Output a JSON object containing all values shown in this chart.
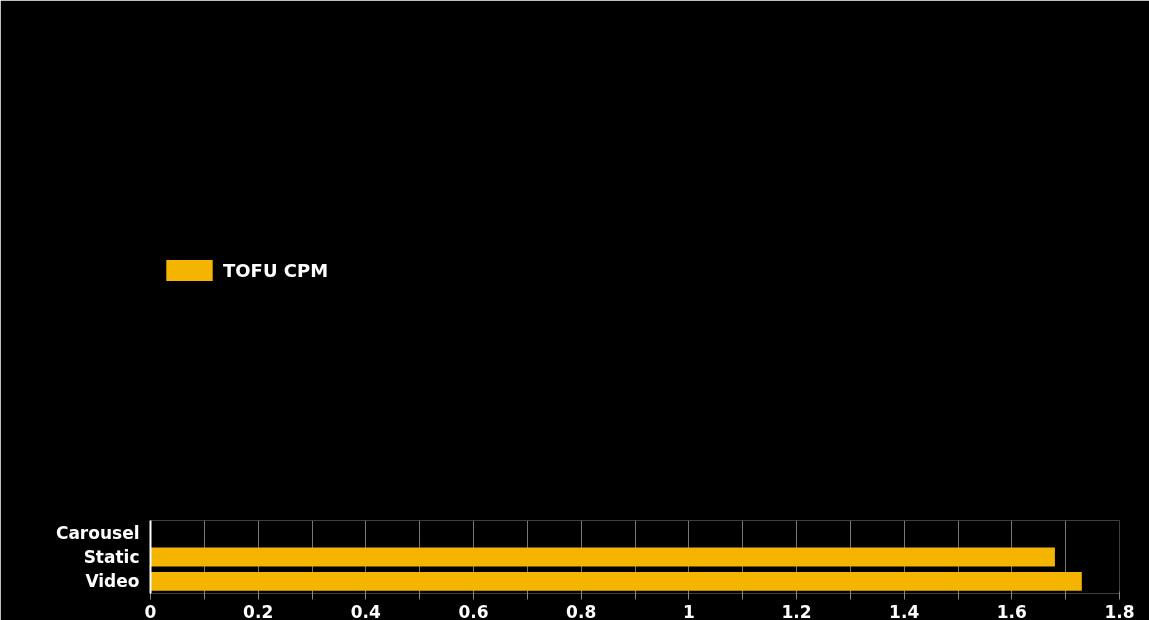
{
  "chart_data": {
    "type": "bar",
    "orientation": "horizontal",
    "categories": [
      "Carousel",
      "Static",
      "Video"
    ],
    "series": [
      {
        "name": "TOFU CPM",
        "color": "#f4b400",
        "values": [
          null,
          1.68,
          1.73
        ]
      }
    ],
    "xlim": [
      0,
      1.8
    ],
    "xticks": [
      0,
      {
        "value": 0.1,
        "label": null
      },
      0.2,
      {
        "value": 0.3,
        "label": null
      },
      0.4,
      {
        "value": 0.5,
        "label": null
      },
      0.6,
      {
        "value": 0.7,
        "label": null
      },
      0.8,
      {
        "value": 0.9,
        "label": null
      },
      1,
      {
        "value": 1.1,
        "label": null
      },
      1.2,
      {
        "value": 1.3,
        "label": null
      },
      1.4,
      {
        "value": 1.5,
        "label": null
      },
      1.6,
      {
        "value": 1.7,
        "label": null
      },
      1.8
    ],
    "grid": "x",
    "legend": "top left"
  }
}
